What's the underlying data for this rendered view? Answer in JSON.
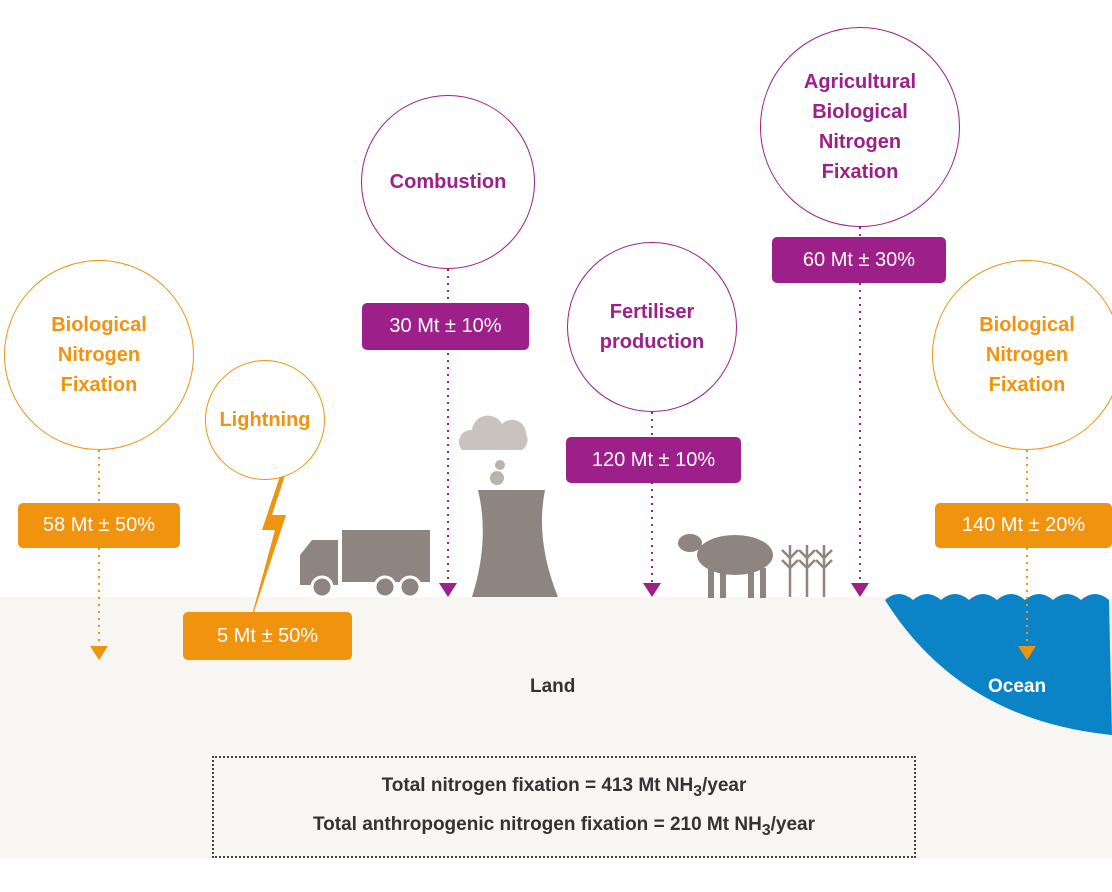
{
  "sources": [
    {
      "label": "Biological Nitrogen Fixation",
      "value": "58 Mt ± 50%"
    },
    {
      "label": "Lightning",
      "value": "5 Mt ± 50%"
    },
    {
      "label": "Combustion",
      "value": "30 Mt ± 10%"
    },
    {
      "label": "Fertiliser production",
      "value": "120 Mt ± 10%"
    },
    {
      "label": "Agricultural Biological Nitrogen Fixation",
      "value": "60 Mt ± 30%"
    },
    {
      "label": "Biological Nitrogen Fixation",
      "value": "140 Mt ± 20%"
    }
  ],
  "regions": {
    "land": "Land",
    "ocean": "Ocean"
  },
  "totals": [
    {
      "label": "Total nitrogen fixation =",
      "amount": "413 Mt NH",
      "subscript": "3",
      "unit": "/year"
    },
    {
      "label": "Total anthropogenic nitrogen fixation =",
      "amount": "210 Mt NH",
      "subscript": "3",
      "unit": "/year"
    }
  ]
}
